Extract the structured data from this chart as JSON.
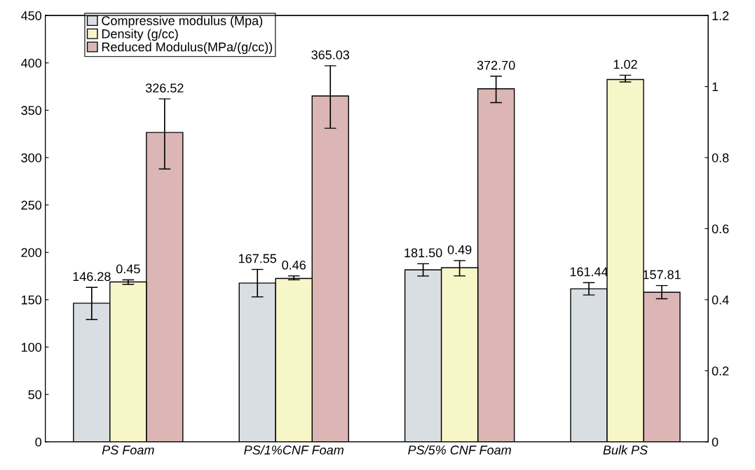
{
  "chart_data": {
    "type": "bar",
    "categories": [
      "PS Foam",
      "PS/1%CNF Foam",
      "PS/5% CNF Foam",
      "Bulk PS"
    ],
    "series": [
      {
        "name": "Compressive modulus (Mpa)",
        "color": "#d9dee2",
        "values": [
          146.28,
          167.55,
          181.5,
          161.44
        ],
        "errors": [
          [
            129,
            163
          ],
          [
            153,
            182
          ],
          [
            175,
            188
          ],
          [
            155,
            168
          ]
        ],
        "value_labels": [
          "146.28",
          "167.55",
          "181.50",
          "161.44"
        ]
      },
      {
        "name": "Density (g/cc)",
        "color": "#f6f6c9",
        "axis": "y2",
        "values": [
          0.45,
          0.46,
          0.49,
          1.02
        ],
        "errors": [
          [
            0.443,
            0.456
          ],
          [
            0.456,
            0.467
          ],
          [
            0.467,
            0.51
          ],
          [
            1.013,
            1.032
          ]
        ],
        "value_labels": [
          "0.45",
          "0.46",
          "0.49",
          "1.02"
        ]
      },
      {
        "name": "Reduced Modulus(MPa/(g/cc))",
        "color": "#dbb6b4",
        "values": [
          326.52,
          365.03,
          372.7,
          157.81
        ],
        "errors": [
          [
            288,
            362
          ],
          [
            331,
            397
          ],
          [
            358,
            386
          ],
          [
            151,
            165
          ]
        ],
        "value_labels": [
          "326.52",
          "365.03",
          "372.70",
          "157.81"
        ]
      }
    ],
    "ylim": [
      0,
      450
    ],
    "yticks": [
      0,
      50,
      100,
      150,
      200,
      250,
      300,
      350,
      400,
      450
    ],
    "y2lim": [
      0,
      1.2
    ],
    "y2ticks": [
      0,
      {
        "value": 0.2,
        "label": "0.2"
      },
      {
        "value": 0.4,
        "label": "0.4"
      },
      {
        "value": 0.6,
        "label": "0.6"
      },
      {
        "value": 0.8,
        "label": "0.8"
      },
      1,
      {
        "value": 1.2,
        "label": "1.2"
      }
    ],
    "legend": "top left",
    "grid": false
  }
}
